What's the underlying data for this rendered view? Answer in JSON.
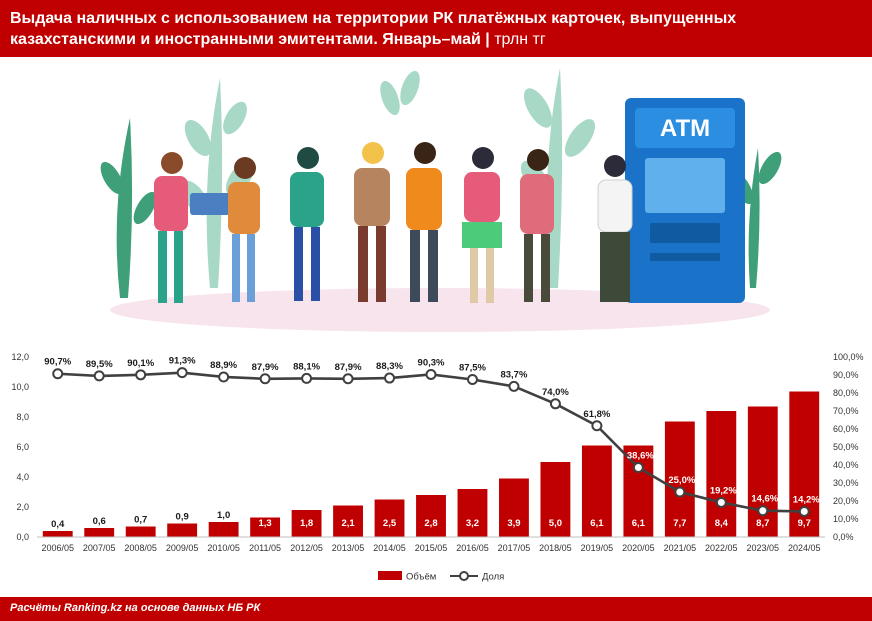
{
  "header": {
    "title": "Выдача наличных с использованием на территории РК платёжных карточек, выпущенных казахстанскими и иностранными эмитентами. Январь–май",
    "unit": "трлн тг"
  },
  "illustration": {
    "icon": "atm-queue-illustration",
    "atm_label": "ATM"
  },
  "chart_data": {
    "type": "bar",
    "categories": [
      "2006/05",
      "2007/05",
      "2008/05",
      "2009/05",
      "2010/05",
      "2011/05",
      "2012/05",
      "2013/05",
      "2014/05",
      "2015/05",
      "2016/05",
      "2017/05",
      "2018/05",
      "2019/05",
      "2020/05",
      "2021/05",
      "2022/05",
      "2023/05",
      "2024/05"
    ],
    "series": [
      {
        "name": "Объём",
        "type": "bar",
        "axis": "left",
        "color": "#c00000",
        "values": [
          0.4,
          0.6,
          0.7,
          0.9,
          1.0,
          1.3,
          1.8,
          2.1,
          2.5,
          2.8,
          3.2,
          3.9,
          5.0,
          6.1,
          6.1,
          7.7,
          8.4,
          8.7,
          9.7
        ],
        "labels": [
          "0,4",
          "0,6",
          "0,7",
          "0,9",
          "1,0",
          "1,3",
          "1,8",
          "2,1",
          "2,5",
          "2,8",
          "3,2",
          "3,9",
          "5,0",
          "6,1",
          "6,1",
          "7,7",
          "8,4",
          "8,7",
          "9,7"
        ]
      },
      {
        "name": "Доля",
        "type": "line",
        "axis": "right",
        "color": "#404040",
        "values": [
          90.7,
          89.5,
          90.1,
          91.3,
          88.9,
          87.9,
          88.1,
          87.9,
          88.3,
          90.3,
          87.5,
          83.7,
          74.0,
          61.8,
          38.6,
          25.0,
          19.2,
          14.6,
          14.2
        ],
        "labels": [
          "90,7%",
          "89,5%",
          "90,1%",
          "91,3%",
          "88,9%",
          "87,9%",
          "88,1%",
          "87,9%",
          "88,3%",
          "90,3%",
          "87,5%",
          "83,7%",
          "74,0%",
          "61,8%",
          "38,6%",
          "25,0%",
          "19,2%",
          "14,6%",
          "14,2%"
        ]
      }
    ],
    "ylim": [
      0,
      12
    ],
    "yticks": [
      "0,0",
      "2,0",
      "4,0",
      "6,0",
      "8,0",
      "10,0",
      "12,0"
    ],
    "y2lim": [
      0,
      100
    ],
    "y2ticks": [
      "0,0%",
      "10,0%",
      "20,0%",
      "30,0%",
      "40,0%",
      "50,0%",
      "60,0%",
      "70,0%",
      "80,0%",
      "90,0%",
      "100,0%"
    ],
    "grid": false,
    "legend_position": "bottom"
  },
  "footer": {
    "source": "Расчёты Ranking.kz на основе данных НБ РК"
  }
}
